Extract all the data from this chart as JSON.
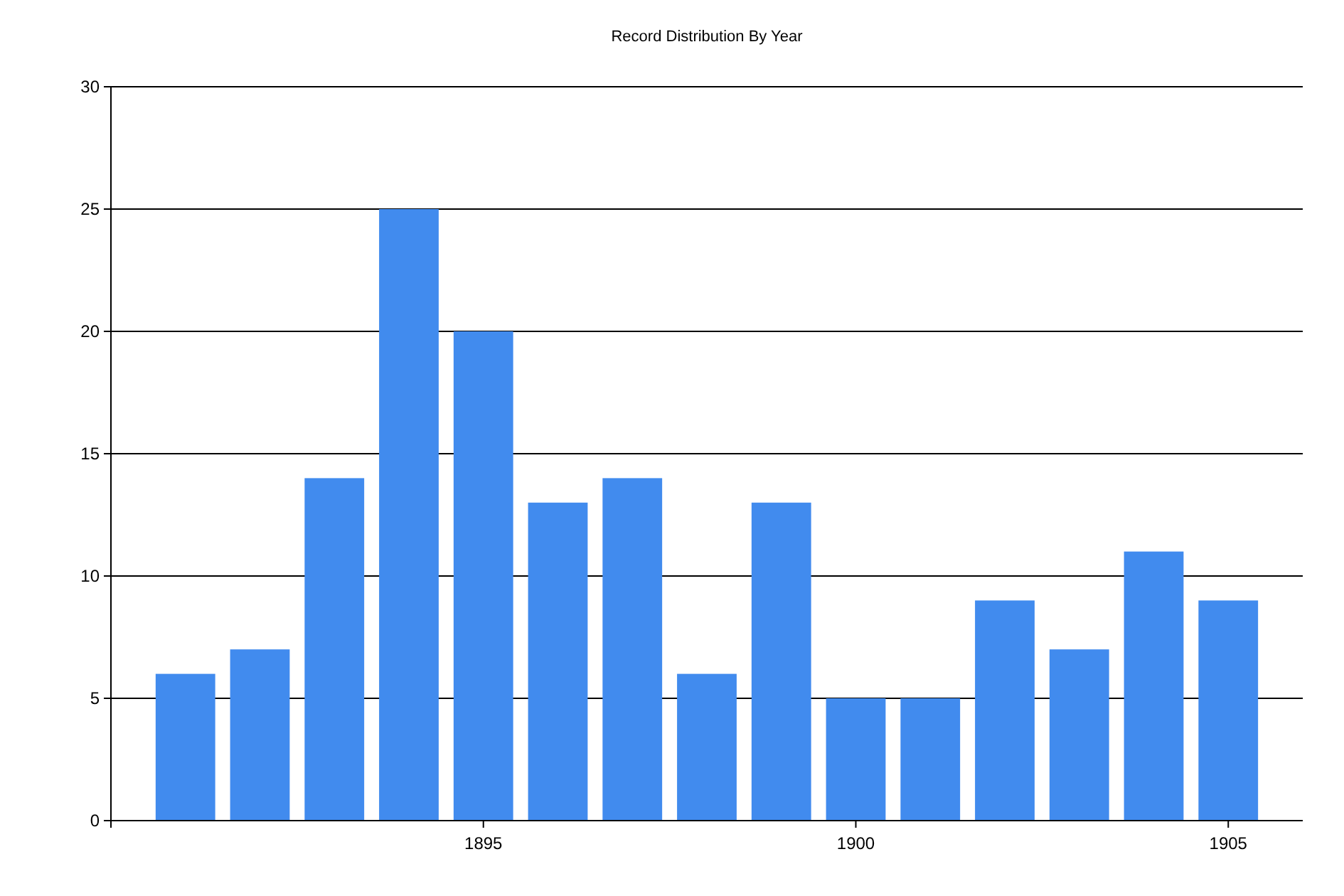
{
  "chart_data": {
    "type": "bar",
    "title": "Record Distribution By Year",
    "x": [
      1891,
      1892,
      1893,
      1894,
      1895,
      1896,
      1897,
      1898,
      1899,
      1900,
      1901,
      1902,
      1903,
      1904,
      1905
    ],
    "values": [
      6,
      7,
      14,
      25,
      20,
      13,
      14,
      6,
      13,
      5,
      5,
      9,
      7,
      11,
      9
    ],
    "color": "#418bee",
    "xlim": [
      1890,
      1906
    ],
    "xticks": [
      1895,
      1900,
      1905
    ],
    "ylim": [
      0,
      30
    ],
    "yticks": [
      0,
      5,
      10,
      15,
      20,
      25,
      30
    ],
    "grid": "y"
  }
}
